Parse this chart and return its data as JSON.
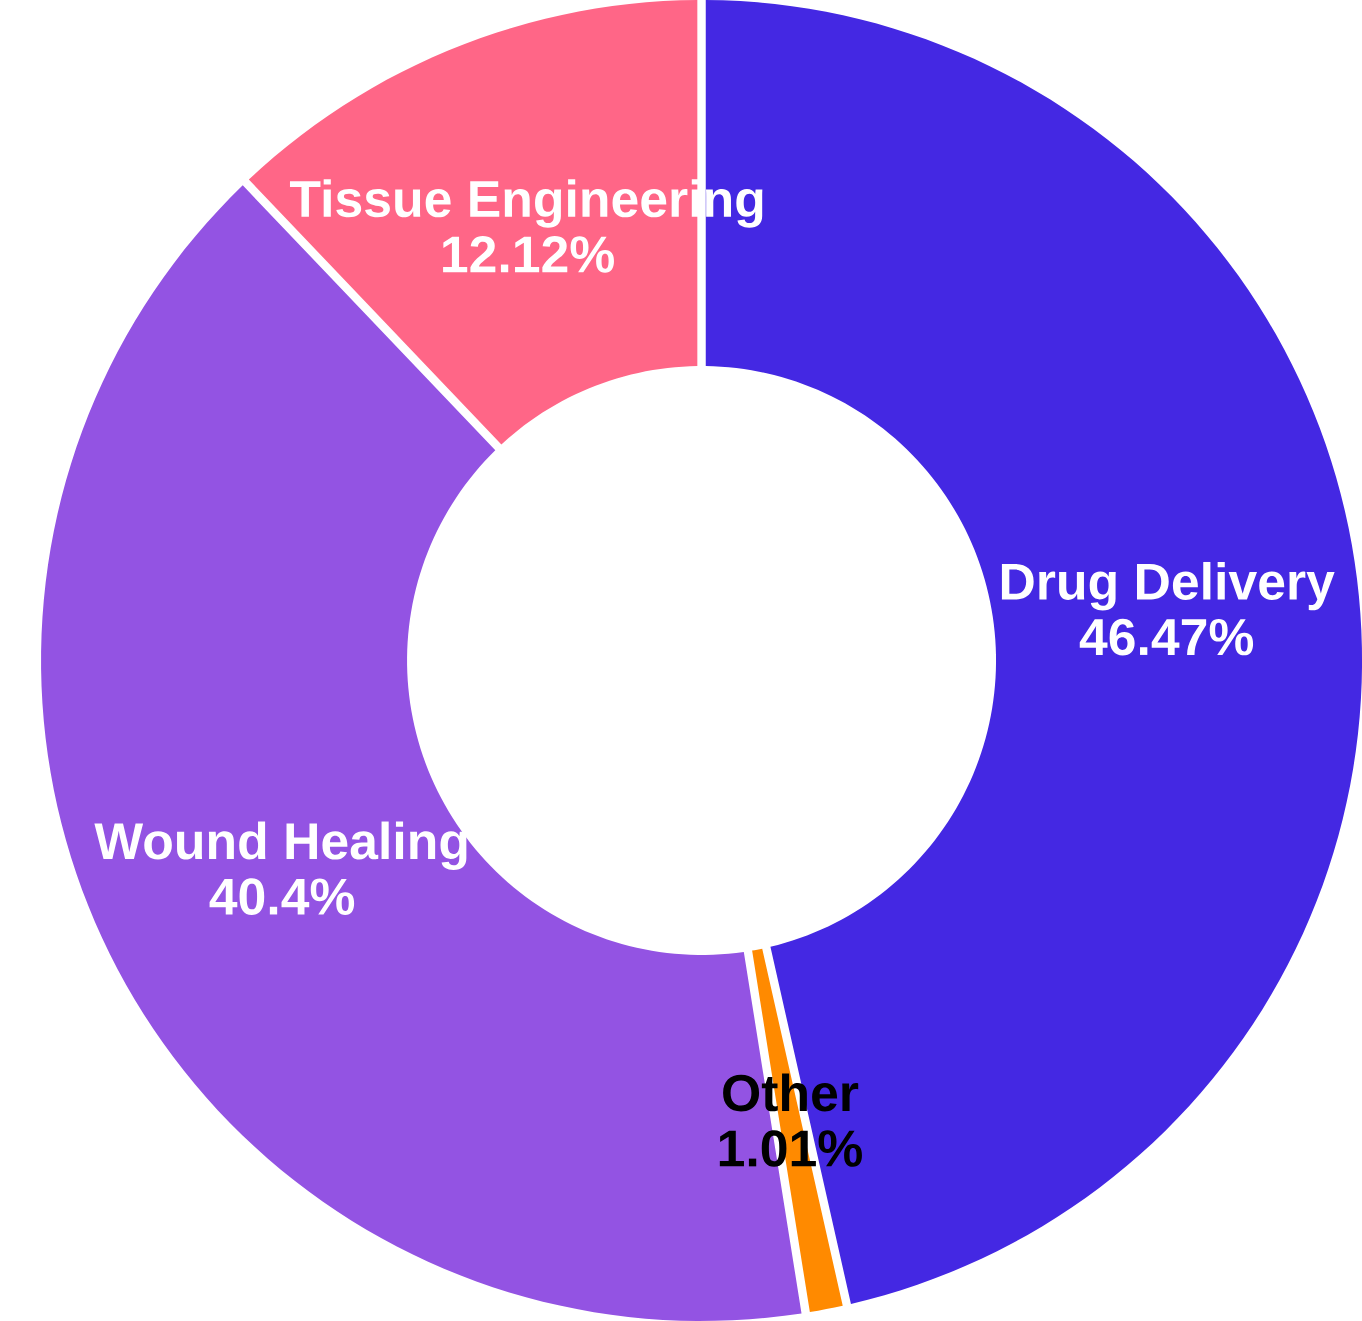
{
  "chart_data": {
    "type": "donut",
    "categories": [
      "Drug Delivery",
      "Other",
      "Wound Healing",
      "Tissue Engineering"
    ],
    "values": [
      46.47,
      1.01,
      40.4,
      12.12
    ],
    "value_labels": [
      "46.47%",
      "1.01%",
      "40.4%",
      "12.12%"
    ],
    "colors": [
      "#4428e3",
      "#ff8a00",
      "#9353e3",
      "#ff6687"
    ]
  }
}
